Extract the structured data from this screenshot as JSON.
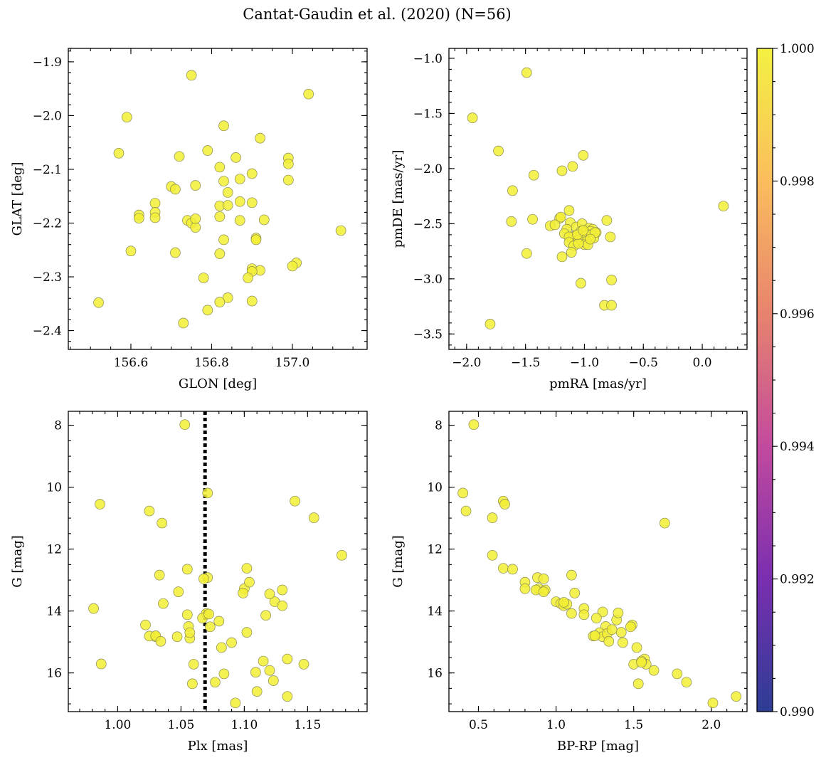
{
  "chart_data": {
    "title": "Cantat-Gaudin et al. (2020) (N=56)",
    "point_color": "#f2ee35",
    "colorbar": {
      "range": [
        0.99,
        1.0
      ],
      "ticks": [
        0.99,
        0.992,
        0.994,
        0.996,
        0.998,
        1.0
      ],
      "tick_labels": [
        "0.990",
        "0.992",
        "0.994",
        "0.996",
        "0.998",
        "1.000"
      ],
      "colormap": [
        "#2c3d95",
        "#7a2eb0",
        "#c24a9e",
        "#e8836e",
        "#fbbd5d",
        "#f3f142"
      ]
    },
    "panels": [
      {
        "type": "scatter",
        "xlabel": "GLON [deg]",
        "ylabel": "GLAT [deg]",
        "xlim": [
          156.445,
          157.185
        ],
        "ylim": [
          -2.435,
          -1.875
        ],
        "y_inverted": false,
        "xticks": [
          156.6,
          156.8,
          157.0
        ],
        "xtick_labels": [
          "156.6",
          "156.8",
          "157.0"
        ],
        "xminor": 0.05,
        "yticks": [
          -2.4,
          -2.3,
          -2.2,
          -2.1,
          -2.0,
          -1.9
        ],
        "ytick_labels": [
          "−2.4",
          "−2.3",
          "−2.2",
          "−2.1",
          "−2.0",
          "−1.9"
        ],
        "yminor": 0.02,
        "x": [
          156.75,
          157.04,
          156.59,
          156.83,
          156.57,
          156.92,
          156.79,
          156.72,
          156.86,
          156.99,
          156.99,
          156.82,
          156.7,
          156.9,
          156.71,
          156.87,
          156.83,
          156.99,
          156.66,
          156.76,
          156.84,
          156.82,
          156.87,
          156.84,
          156.66,
          156.66,
          156.62,
          156.82,
          156.74,
          156.75,
          156.76,
          156.87,
          156.93,
          157.12,
          156.9,
          156.91,
          156.83,
          156.6,
          156.71,
          156.82,
          156.91,
          157.01,
          157.0,
          156.9,
          156.92,
          156.9,
          156.89,
          156.78,
          156.84,
          156.9,
          156.82,
          156.52,
          156.79,
          156.73,
          156.76,
          156.62
        ],
        "y": [
          -1.925,
          -1.96,
          -2.003,
          -2.019,
          -2.07,
          -2.042,
          -2.065,
          -2.076,
          -2.078,
          -2.079,
          -2.09,
          -2.096,
          -2.132,
          -2.108,
          -2.137,
          -2.118,
          -2.122,
          -2.12,
          -2.163,
          -2.13,
          -2.143,
          -2.168,
          -2.16,
          -2.167,
          -2.18,
          -2.19,
          -2.185,
          -2.188,
          -2.195,
          -2.2,
          -2.208,
          -2.195,
          -2.194,
          -2.214,
          -2.162,
          -2.228,
          -2.231,
          -2.252,
          -2.255,
          -2.257,
          -2.231,
          -2.274,
          -2.28,
          -2.285,
          -2.288,
          -2.29,
          -2.302,
          -2.302,
          -2.339,
          -2.345,
          -2.347,
          -2.348,
          -2.362,
          -2.386,
          -2.192,
          -2.191
        ]
      },
      {
        "type": "scatter",
        "xlabel": "pmRA [mas/yr]",
        "ylabel": "pmDE [mas/yr]",
        "xlim": [
          -2.15,
          0.38
        ],
        "ylim": [
          -3.64,
          -0.91
        ],
        "y_inverted": false,
        "xticks": [
          -2.0,
          -1.5,
          -1.0,
          -0.5,
          0.0
        ],
        "xtick_labels": [
          "−2.0",
          "−1.5",
          "−1.0",
          "−0.5",
          "0.0"
        ],
        "xminor": 0.1,
        "yticks": [
          -3.5,
          -3.0,
          -2.5,
          -2.0,
          -1.5,
          -1.0
        ],
        "ytick_labels": [
          "−3.5",
          "−3.0",
          "−2.5",
          "−2.0",
          "−1.5",
          "−1.0"
        ],
        "yminor": 0.1,
        "x": [
          -1.49,
          -1.95,
          -1.73,
          -1.43,
          -1.1,
          -1.19,
          -1.01,
          -1.61,
          -1.13,
          -1.62,
          -1.44,
          -1.29,
          -1.21,
          -1.25,
          -1.2,
          -1.12,
          -1.07,
          -1.02,
          -0.96,
          -0.93,
          -0.81,
          -1.03,
          -1.0,
          -0.95,
          -0.9,
          -0.97,
          -1.05,
          -1.08,
          -1.11,
          -1.15,
          -0.99,
          -0.94,
          -0.92,
          -1.17,
          -1.13,
          -0.78,
          -1.05,
          -0.98,
          -1.13,
          -1.09,
          -1.0,
          -0.97,
          -1.49,
          -1.11,
          -1.19,
          -1.05,
          -0.91,
          -0.77,
          -1.03,
          -0.83,
          -0.77,
          -1.8,
          0.18,
          -1.06,
          -0.95,
          -1.01
        ],
        "y": [
          -1.13,
          -1.54,
          -1.84,
          -2.06,
          -1.98,
          -2.02,
          -1.88,
          -2.2,
          -2.38,
          -2.48,
          -2.46,
          -2.52,
          -2.45,
          -2.51,
          -2.44,
          -2.49,
          -2.53,
          -2.5,
          -2.54,
          -2.55,
          -2.47,
          -2.57,
          -2.58,
          -2.57,
          -2.58,
          -2.6,
          -2.6,
          -2.61,
          -2.62,
          -2.55,
          -2.61,
          -2.6,
          -2.63,
          -2.59,
          -2.62,
          -2.62,
          -2.65,
          -2.66,
          -2.67,
          -2.7,
          -2.69,
          -2.69,
          -2.77,
          -2.76,
          -2.8,
          -2.68,
          -2.58,
          -3.01,
          -3.04,
          -3.24,
          -3.24,
          -3.41,
          -2.34,
          -2.6,
          -2.64,
          -2.56
        ]
      },
      {
        "type": "scatter",
        "xlabel": "Plx [mas]",
        "ylabel": "G [mag]",
        "xlim": [
          0.961,
          1.197
        ],
        "ylim": [
          17.25,
          7.55
        ],
        "y_inverted": true,
        "xticks": [
          1.0,
          1.05,
          1.1,
          1.15
        ],
        "xtick_labels": [
          "1.00",
          "1.05",
          "1.10",
          "1.15"
        ],
        "xminor": 0.01,
        "yticks": [
          8,
          10,
          12,
          14,
          16
        ],
        "ytick_labels": [
          "8",
          "10",
          "12",
          "14",
          "16"
        ],
        "yminor": 0.5,
        "vline": 1.069,
        "x": [
          1.053,
          1.071,
          0.986,
          1.14,
          1.025,
          1.155,
          1.035,
          1.177,
          1.102,
          1.055,
          1.071,
          1.068,
          1.033,
          1.1,
          1.13,
          1.104,
          1.124,
          1.099,
          1.036,
          1.12,
          1.048,
          1.13,
          1.07,
          1.117,
          0.981,
          1.055,
          1.067,
          1.072,
          1.056,
          1.022,
          1.03,
          1.025,
          1.047,
          1.073,
          1.102,
          1.03,
          1.057,
          1.034,
          1.082,
          1.09,
          1.115,
          1.06,
          1.12,
          1.147,
          1.134,
          0.987,
          1.059,
          1.084,
          1.077,
          1.057,
          1.134,
          1.093,
          1.11,
          1.08,
          1.109,
          1.123
        ],
        "y": [
          7.98,
          10.19,
          10.55,
          10.45,
          10.77,
          10.99,
          11.16,
          12.2,
          12.62,
          12.65,
          12.92,
          12.96,
          12.84,
          13.28,
          13.32,
          13.07,
          13.7,
          13.42,
          13.76,
          13.45,
          13.38,
          13.83,
          14.08,
          14.14,
          13.92,
          14.12,
          14.23,
          14.1,
          14.5,
          14.45,
          14.83,
          14.81,
          14.83,
          14.51,
          14.69,
          14.8,
          14.88,
          14.98,
          15.18,
          15.02,
          15.62,
          15.72,
          15.92,
          15.72,
          15.55,
          15.71,
          16.35,
          16.03,
          16.3,
          14.7,
          16.76,
          16.97,
          16.6,
          14.33,
          15.98,
          16.25
        ]
      },
      {
        "type": "scatter",
        "xlabel": "BP-RP [mag]",
        "ylabel": "G [mag]",
        "xlim": [
          0.31,
          2.23
        ],
        "ylim": [
          17.25,
          7.55
        ],
        "y_inverted": true,
        "xticks": [
          0.5,
          1.0,
          1.5,
          2.0
        ],
        "xtick_labels": [
          "0.5",
          "1.0",
          "1.5",
          "2.0"
        ],
        "xminor": 0.1,
        "yticks": [
          8,
          10,
          12,
          14,
          16
        ],
        "ytick_labels": [
          "8",
          "10",
          "12",
          "14",
          "16"
        ],
        "yminor": 0.5,
        "x": [
          0.47,
          0.4,
          0.42,
          0.66,
          0.59,
          0.67,
          1.7,
          0.59,
          0.66,
          0.72,
          0.8,
          0.88,
          0.89,
          1.1,
          0.93,
          0.8,
          0.87,
          1.12,
          0.92,
          1.0,
          1.03,
          1.05,
          1.07,
          1.18,
          0.92,
          1.05,
          1.1,
          1.3,
          1.18,
          1.26,
          1.32,
          1.39,
          1.49,
          1.28,
          1.48,
          1.4,
          1.42,
          1.24,
          1.3,
          1.33,
          1.34,
          1.43,
          1.25,
          1.52,
          1.5,
          1.57,
          1.58,
          1.55,
          1.55,
          1.63,
          1.78,
          1.53,
          1.84,
          2.01,
          2.16,
          1.36
        ],
        "y": [
          7.98,
          10.19,
          10.77,
          10.45,
          10.99,
          10.55,
          11.16,
          12.2,
          12.62,
          12.65,
          13.07,
          12.92,
          13.28,
          12.84,
          13.32,
          13.28,
          13.32,
          13.42,
          12.96,
          13.7,
          13.76,
          13.83,
          13.78,
          13.92,
          13.38,
          13.72,
          14.08,
          14.03,
          14.12,
          14.23,
          14.5,
          14.29,
          14.45,
          14.7,
          14.51,
          14.06,
          14.69,
          14.81,
          14.83,
          14.73,
          14.98,
          15.02,
          14.8,
          15.18,
          15.72,
          15.55,
          15.72,
          15.62,
          15.66,
          15.92,
          16.03,
          16.35,
          16.3,
          16.97,
          16.76,
          14.6
        ]
      }
    ]
  }
}
